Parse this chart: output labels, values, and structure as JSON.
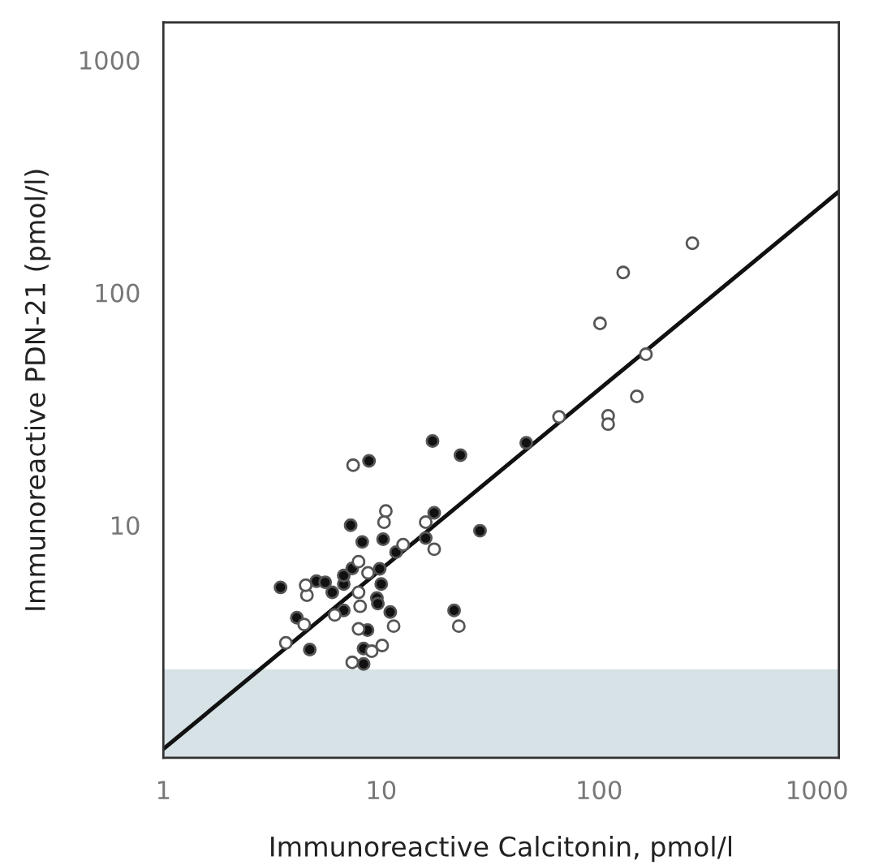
{
  "chart_data": {
    "type": "scatter",
    "xlabel": "Immunoreactive Calcitonin, pmol/l",
    "ylabel": "Immunoreactive PDN-21 (pmol/l)",
    "log": "xy",
    "grid": false,
    "legend": false,
    "xlim": [
      1,
      1260
    ],
    "ylim": [
      1,
      1450
    ],
    "xticks": [
      1,
      10,
      100,
      1000
    ],
    "yticks": [
      10,
      100,
      1000
    ],
    "bands": [
      {
        "axis": "y",
        "from": 1,
        "to": 2.4,
        "color": "#d6e2e6"
      }
    ],
    "series": [
      {
        "color": "#111111",
        "marker": "circle",
        "x": [
          3.45,
          4.1,
          4.7,
          5.04,
          5.53,
          5.96,
          6.73,
          6.73,
          6.73,
          7.36,
          7.24,
          8.79,
          8.18,
          8.65,
          8.3,
          8.3,
          9.84,
          10.2,
          10.0,
          9.55,
          9.65,
          11.0,
          11.7,
          16.0,
          17.2,
          17.5,
          23.1,
          21.6,
          28.4,
          46.3
        ],
        "values": [
          5.4,
          4.0,
          2.92,
          5.74,
          5.68,
          5.14,
          5.58,
          4.3,
          6.07,
          6.52,
          10,
          18.9,
          8.47,
          3.54,
          2.95,
          2.53,
          6.49,
          8.7,
          5.58,
          4.86,
          4.6,
          4.23,
          7.66,
          8.8,
          23.0,
          11.3,
          20.0,
          4.3,
          9.46,
          22.6
        ]
      },
      {
        "color": "#ffffff",
        "marker": "circle",
        "x": [
          7.43,
          3.65,
          4.43,
          4.56,
          4.5,
          6.12,
          7.87,
          7.87,
          7.87,
          7.36,
          9.04,
          10.1,
          10.5,
          10.3,
          12.6,
          11.4,
          16.0,
          17.5,
          22.7,
          8.7,
          8.0,
          65.5,
          101,
          110,
          110,
          129,
          149,
          164,
          268
        ],
        "values": [
          18.1,
          3.12,
          3.74,
          5.0,
          5.52,
          4.11,
          6.97,
          3.58,
          5.14,
          2.57,
          2.87,
          3.04,
          11.5,
          10.3,
          8.24,
          3.68,
          10.3,
          7.88,
          3.68,
          6.24,
          4.48,
          29.2,
          73.7,
          29.5,
          27.2,
          122,
          35.8,
          54.3,
          163
        ]
      },
      {
        "type": "line",
        "marker": "none",
        "color": "#111111",
        "x": [
          1,
          1260
        ],
        "values": [
          1.09,
          272
        ]
      }
    ]
  }
}
